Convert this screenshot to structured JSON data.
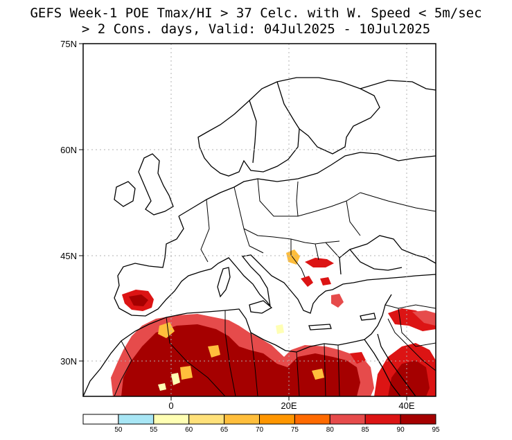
{
  "title_line1": "GEFS Week-1 POE Tmax/HI > 37 Celc. with W. Speed < 5m/sec",
  "title_line2": "> 2 Cons. days, Valid: 04Jul2025 - 10Jul2025",
  "map": {
    "lon_range": [
      -15,
      45
    ],
    "lat_range": [
      25,
      75
    ],
    "lat_ticks": [
      {
        "lat": 75,
        "label": "75N"
      },
      {
        "lat": 60,
        "label": "60N"
      },
      {
        "lat": 45,
        "label": "45N"
      },
      {
        "lat": 30,
        "label": "30N"
      }
    ],
    "lon_ticks": [
      {
        "lon": 0,
        "label": "0"
      },
      {
        "lon": 20,
        "label": "20E"
      },
      {
        "lon": 40,
        "label": "40E"
      }
    ],
    "grid": "dotted"
  },
  "colorbar": {
    "labels": [
      "50",
      "55",
      "60",
      "65",
      "70",
      "75",
      "80",
      "85",
      "90",
      "95"
    ],
    "colors": [
      "#ffffff",
      "#a8e6f5",
      "#ffffb4",
      "#ffe17a",
      "#ffbe3c",
      "#ff9600",
      "#ff6a00",
      "#e64b4b",
      "#dc1414",
      "#a50000"
    ]
  },
  "colors": {
    "land_outline": "#000000",
    "water": "#ffffff",
    "hot_dark": "#a50000",
    "hot_mid": "#dc1414"
  }
}
